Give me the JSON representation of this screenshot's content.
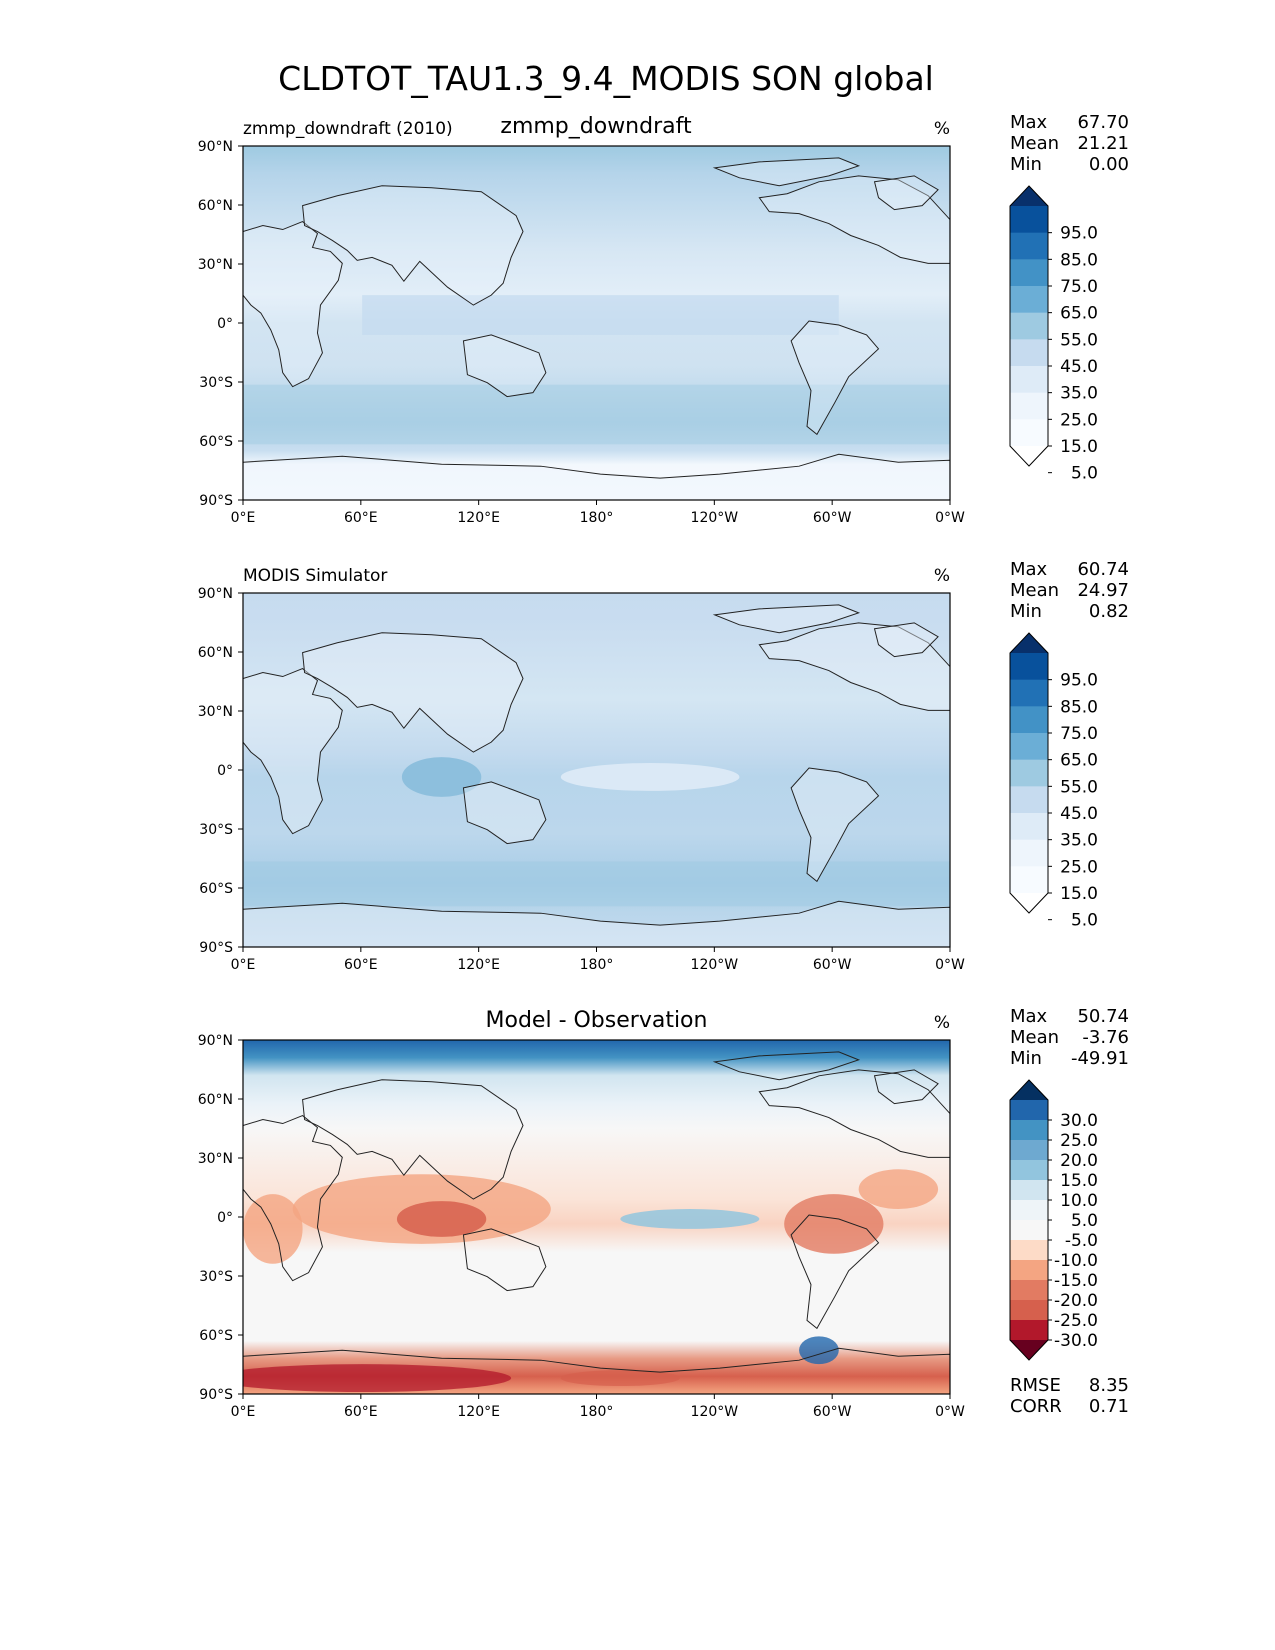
{
  "figure": {
    "title": "CLDTOT_TAU1.3_9.4_MODIS SON global"
  },
  "chart_data": [
    {
      "type": "heatmap",
      "panel": "test",
      "left_title": "zmmp_downdraft (2010)",
      "center_title": "zmmp_downdraft",
      "units": "%",
      "stats": [
        {
          "label": "Max",
          "value": "67.70"
        },
        {
          "label": "Mean",
          "value": "21.21"
        },
        {
          "label": "Min",
          "value": "0.00"
        }
      ],
      "xticks": [
        "0°E",
        "60°E",
        "120°E",
        "180°",
        "120°W",
        "60°W",
        "0°W"
      ],
      "yticks": [
        "90°N",
        "60°N",
        "30°N",
        "0°",
        "30°S",
        "60°S",
        "90°S"
      ],
      "colorbar": {
        "levels": [
          "95.0",
          "85.0",
          "75.0",
          "65.0",
          "55.0",
          "45.0",
          "35.0",
          "25.0",
          "15.0",
          "5.0"
        ],
        "colors": [
          "#08306b",
          "#08519c",
          "#2171b5",
          "#4292c6",
          "#6baed6",
          "#9ecae1",
          "#c6dbef",
          "#deebf7",
          "#eef5fc",
          "#f7fbff",
          "#ffffff"
        ]
      }
    },
    {
      "type": "heatmap",
      "panel": "reference",
      "left_title": "MODIS Simulator",
      "center_title": "",
      "units": "%",
      "stats": [
        {
          "label": "Max",
          "value": "60.74"
        },
        {
          "label": "Mean",
          "value": "24.97"
        },
        {
          "label": "Min",
          "value": "0.82"
        }
      ],
      "xticks": [
        "0°E",
        "60°E",
        "120°E",
        "180°",
        "120°W",
        "60°W",
        "0°W"
      ],
      "yticks": [
        "90°N",
        "60°N",
        "30°N",
        "0°",
        "30°S",
        "60°S",
        "90°S"
      ],
      "colorbar": {
        "levels": [
          "95.0",
          "85.0",
          "75.0",
          "65.0",
          "55.0",
          "45.0",
          "35.0",
          "25.0",
          "15.0",
          "5.0"
        ],
        "colors": [
          "#08306b",
          "#08519c",
          "#2171b5",
          "#4292c6",
          "#6baed6",
          "#9ecae1",
          "#c6dbef",
          "#deebf7",
          "#eef5fc",
          "#f7fbff",
          "#ffffff"
        ]
      }
    },
    {
      "type": "heatmap",
      "panel": "difference",
      "left_title": "",
      "center_title": "Model - Observation",
      "units": "%",
      "stats": [
        {
          "label": "Max",
          "value": "50.74"
        },
        {
          "label": "Mean",
          "value": "-3.76"
        },
        {
          "label": "Min",
          "value": "-49.91"
        }
      ],
      "extra_stats": [
        {
          "label": "RMSE",
          "value": "8.35"
        },
        {
          "label": "CORR",
          "value": "0.71"
        }
      ],
      "xticks": [
        "0°E",
        "60°E",
        "120°E",
        "180°",
        "120°W",
        "60°W",
        "0°W"
      ],
      "yticks": [
        "90°N",
        "60°N",
        "30°N",
        "0°",
        "30°S",
        "60°S",
        "90°S"
      ],
      "colorbar": {
        "levels": [
          "30.0",
          "25.0",
          "20.0",
          "15.0",
          "10.0",
          "5.0",
          "-5.0",
          "-10.0",
          "-15.0",
          "-20.0",
          "-25.0",
          "-30.0"
        ],
        "colors": [
          "#053061",
          "#2166ac",
          "#4393c3",
          "#6ea9d0",
          "#92c5de",
          "#d1e5f0",
          "#eef4f8",
          "#f7f7f7",
          "#fddbc7",
          "#f4a582",
          "#e27b62",
          "#d6604d",
          "#b2182b",
          "#67001f"
        ]
      }
    }
  ]
}
